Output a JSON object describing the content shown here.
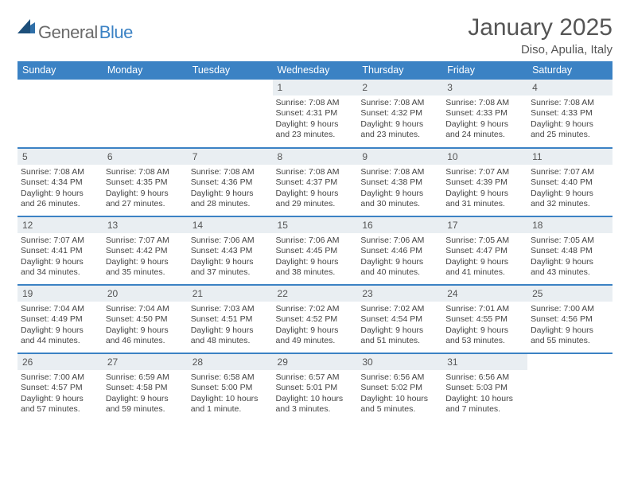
{
  "logo": {
    "l1": "General",
    "l2": "Blue"
  },
  "title": "January 2025",
  "location": "Diso, Apulia, Italy",
  "colors": {
    "header_bg": "#3b82c4",
    "header_text": "#ffffff",
    "daynum_bg": "#e9eef2",
    "border": "#3b82c4",
    "text": "#444444"
  },
  "columns": [
    "Sunday",
    "Monday",
    "Tuesday",
    "Wednesday",
    "Thursday",
    "Friday",
    "Saturday"
  ],
  "weeks": [
    [
      {
        "n": "",
        "t": ""
      },
      {
        "n": "",
        "t": ""
      },
      {
        "n": "",
        "t": ""
      },
      {
        "n": "1",
        "t": "Sunrise: 7:08 AM\nSunset: 4:31 PM\nDaylight: 9 hours and 23 minutes."
      },
      {
        "n": "2",
        "t": "Sunrise: 7:08 AM\nSunset: 4:32 PM\nDaylight: 9 hours and 23 minutes."
      },
      {
        "n": "3",
        "t": "Sunrise: 7:08 AM\nSunset: 4:33 PM\nDaylight: 9 hours and 24 minutes."
      },
      {
        "n": "4",
        "t": "Sunrise: 7:08 AM\nSunset: 4:33 PM\nDaylight: 9 hours and 25 minutes."
      }
    ],
    [
      {
        "n": "5",
        "t": "Sunrise: 7:08 AM\nSunset: 4:34 PM\nDaylight: 9 hours and 26 minutes."
      },
      {
        "n": "6",
        "t": "Sunrise: 7:08 AM\nSunset: 4:35 PM\nDaylight: 9 hours and 27 minutes."
      },
      {
        "n": "7",
        "t": "Sunrise: 7:08 AM\nSunset: 4:36 PM\nDaylight: 9 hours and 28 minutes."
      },
      {
        "n": "8",
        "t": "Sunrise: 7:08 AM\nSunset: 4:37 PM\nDaylight: 9 hours and 29 minutes."
      },
      {
        "n": "9",
        "t": "Sunrise: 7:08 AM\nSunset: 4:38 PM\nDaylight: 9 hours and 30 minutes."
      },
      {
        "n": "10",
        "t": "Sunrise: 7:07 AM\nSunset: 4:39 PM\nDaylight: 9 hours and 31 minutes."
      },
      {
        "n": "11",
        "t": "Sunrise: 7:07 AM\nSunset: 4:40 PM\nDaylight: 9 hours and 32 minutes."
      }
    ],
    [
      {
        "n": "12",
        "t": "Sunrise: 7:07 AM\nSunset: 4:41 PM\nDaylight: 9 hours and 34 minutes."
      },
      {
        "n": "13",
        "t": "Sunrise: 7:07 AM\nSunset: 4:42 PM\nDaylight: 9 hours and 35 minutes."
      },
      {
        "n": "14",
        "t": "Sunrise: 7:06 AM\nSunset: 4:43 PM\nDaylight: 9 hours and 37 minutes."
      },
      {
        "n": "15",
        "t": "Sunrise: 7:06 AM\nSunset: 4:45 PM\nDaylight: 9 hours and 38 minutes."
      },
      {
        "n": "16",
        "t": "Sunrise: 7:06 AM\nSunset: 4:46 PM\nDaylight: 9 hours and 40 minutes."
      },
      {
        "n": "17",
        "t": "Sunrise: 7:05 AM\nSunset: 4:47 PM\nDaylight: 9 hours and 41 minutes."
      },
      {
        "n": "18",
        "t": "Sunrise: 7:05 AM\nSunset: 4:48 PM\nDaylight: 9 hours and 43 minutes."
      }
    ],
    [
      {
        "n": "19",
        "t": "Sunrise: 7:04 AM\nSunset: 4:49 PM\nDaylight: 9 hours and 44 minutes."
      },
      {
        "n": "20",
        "t": "Sunrise: 7:04 AM\nSunset: 4:50 PM\nDaylight: 9 hours and 46 minutes."
      },
      {
        "n": "21",
        "t": "Sunrise: 7:03 AM\nSunset: 4:51 PM\nDaylight: 9 hours and 48 minutes."
      },
      {
        "n": "22",
        "t": "Sunrise: 7:02 AM\nSunset: 4:52 PM\nDaylight: 9 hours and 49 minutes."
      },
      {
        "n": "23",
        "t": "Sunrise: 7:02 AM\nSunset: 4:54 PM\nDaylight: 9 hours and 51 minutes."
      },
      {
        "n": "24",
        "t": "Sunrise: 7:01 AM\nSunset: 4:55 PM\nDaylight: 9 hours and 53 minutes."
      },
      {
        "n": "25",
        "t": "Sunrise: 7:00 AM\nSunset: 4:56 PM\nDaylight: 9 hours and 55 minutes."
      }
    ],
    [
      {
        "n": "26",
        "t": "Sunrise: 7:00 AM\nSunset: 4:57 PM\nDaylight: 9 hours and 57 minutes."
      },
      {
        "n": "27",
        "t": "Sunrise: 6:59 AM\nSunset: 4:58 PM\nDaylight: 9 hours and 59 minutes."
      },
      {
        "n": "28",
        "t": "Sunrise: 6:58 AM\nSunset: 5:00 PM\nDaylight: 10 hours and 1 minute."
      },
      {
        "n": "29",
        "t": "Sunrise: 6:57 AM\nSunset: 5:01 PM\nDaylight: 10 hours and 3 minutes."
      },
      {
        "n": "30",
        "t": "Sunrise: 6:56 AM\nSunset: 5:02 PM\nDaylight: 10 hours and 5 minutes."
      },
      {
        "n": "31",
        "t": "Sunrise: 6:56 AM\nSunset: 5:03 PM\nDaylight: 10 hours and 7 minutes."
      },
      {
        "n": "",
        "t": ""
      }
    ]
  ]
}
